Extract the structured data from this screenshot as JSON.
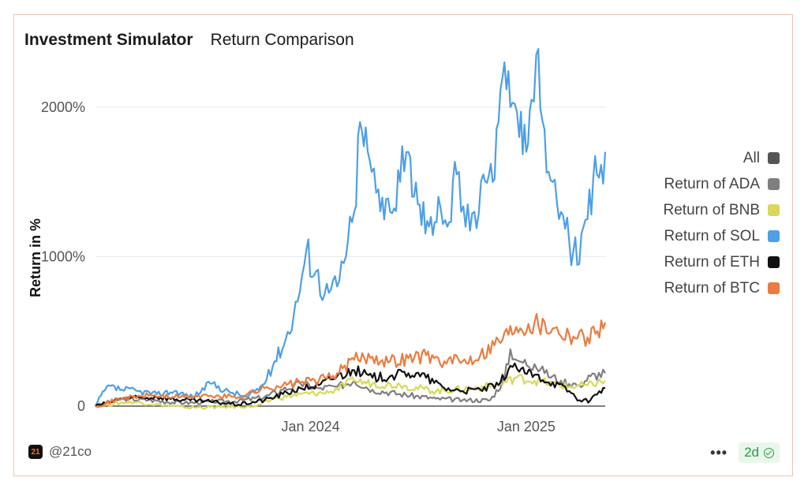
{
  "header": {
    "app_title": "Investment Simulator",
    "chart_title": "Return Comparison"
  },
  "footer": {
    "brand_icon_text": "21",
    "handle": "@21co",
    "more_label": "•••",
    "age_badge": "2d"
  },
  "legend_all": {
    "label": "All",
    "color": "#555555"
  },
  "chart_data": {
    "type": "line",
    "title": "Return Comparison",
    "xlabel": "",
    "ylabel": "Return in %",
    "x_range": [
      "2023-01-01",
      "2025-05-15"
    ],
    "ylim": [
      0,
      2300
    ],
    "x_ticks": [
      {
        "date": "2024-01-01",
        "label": "Jan 2024"
      },
      {
        "date": "2025-01-01",
        "label": "Jan 2025"
      }
    ],
    "y_ticks": [
      {
        "value": 0,
        "label": "0"
      },
      {
        "value": 1000,
        "label": "1000%"
      },
      {
        "value": 2000,
        "label": "2000%"
      }
    ],
    "grid": true,
    "legend_position": "right",
    "series": [
      {
        "name": "Return of ADA",
        "color": "#7f7f7f",
        "points": [
          [
            "2023-01-01",
            0
          ],
          [
            "2023-02-15",
            50
          ],
          [
            "2023-04-01",
            40
          ],
          [
            "2023-06-01",
            20
          ],
          [
            "2023-07-15",
            30
          ],
          [
            "2023-09-01",
            35
          ],
          [
            "2023-10-15",
            60
          ],
          [
            "2023-11-15",
            110
          ],
          [
            "2023-12-15",
            150
          ],
          [
            "2024-01-15",
            120
          ],
          [
            "2024-02-15",
            130
          ],
          [
            "2024-03-15",
            170
          ],
          [
            "2024-04-15",
            110
          ],
          [
            "2024-06-01",
            80
          ],
          [
            "2024-08-01",
            50
          ],
          [
            "2024-09-15",
            40
          ],
          [
            "2024-11-01",
            40
          ],
          [
            "2024-11-25",
            180
          ],
          [
            "2024-12-05",
            380
          ],
          [
            "2024-12-20",
            300
          ],
          [
            "2025-01-15",
            280
          ],
          [
            "2025-02-01",
            220
          ],
          [
            "2025-03-01",
            170
          ],
          [
            "2025-04-01",
            140
          ],
          [
            "2025-04-20",
            200
          ],
          [
            "2025-05-15",
            220
          ]
        ]
      },
      {
        "name": "Return of BNB",
        "color": "#d8d85a",
        "points": [
          [
            "2023-01-01",
            0
          ],
          [
            "2023-03-01",
            30
          ],
          [
            "2023-06-01",
            -10
          ],
          [
            "2023-08-01",
            -5
          ],
          [
            "2023-10-01",
            0
          ],
          [
            "2023-11-01",
            50
          ],
          [
            "2023-12-15",
            80
          ],
          [
            "2024-02-01",
            90
          ],
          [
            "2024-03-15",
            170
          ],
          [
            "2024-04-15",
            150
          ],
          [
            "2024-06-01",
            140
          ],
          [
            "2024-08-01",
            100
          ],
          [
            "2024-10-01",
            120
          ],
          [
            "2024-11-15",
            140
          ],
          [
            "2024-12-15",
            190
          ],
          [
            "2025-01-15",
            170
          ],
          [
            "2025-02-15",
            150
          ],
          [
            "2025-03-15",
            130
          ],
          [
            "2025-04-15",
            140
          ],
          [
            "2025-05-15",
            170
          ]
        ]
      },
      {
        "name": "Return of SOL",
        "color": "#4d9fe6",
        "points": [
          [
            "2023-01-01",
            0
          ],
          [
            "2023-01-20",
            130
          ],
          [
            "2023-02-15",
            110
          ],
          [
            "2023-03-15",
            100
          ],
          [
            "2023-04-15",
            80
          ],
          [
            "2023-05-15",
            100
          ],
          [
            "2023-06-15",
            60
          ],
          [
            "2023-07-15",
            150
          ],
          [
            "2023-08-15",
            100
          ],
          [
            "2023-09-15",
            60
          ],
          [
            "2023-10-15",
            150
          ],
          [
            "2023-11-01",
            300
          ],
          [
            "2023-11-20",
            450
          ],
          [
            "2023-12-10",
            700
          ],
          [
            "2023-12-25",
            1050
          ],
          [
            "2024-01-10",
            900
          ],
          [
            "2024-01-25",
            750
          ],
          [
            "2024-02-15",
            800
          ],
          [
            "2024-03-01",
            1000
          ],
          [
            "2024-03-15",
            1300
          ],
          [
            "2024-03-25",
            1900
          ],
          [
            "2024-04-10",
            1650
          ],
          [
            "2024-04-25",
            1450
          ],
          [
            "2024-05-15",
            1300
          ],
          [
            "2024-06-01",
            1500
          ],
          [
            "2024-06-15",
            1700
          ],
          [
            "2024-07-01",
            1350
          ],
          [
            "2024-07-20",
            1200
          ],
          [
            "2024-08-05",
            1400
          ],
          [
            "2024-08-20",
            1200
          ],
          [
            "2024-09-05",
            1550
          ],
          [
            "2024-09-20",
            1200
          ],
          [
            "2024-10-05",
            1300
          ],
          [
            "2024-10-20",
            1550
          ],
          [
            "2024-11-05",
            1500
          ],
          [
            "2024-11-15",
            1900
          ],
          [
            "2024-11-25",
            2300
          ],
          [
            "2024-12-05",
            2000
          ],
          [
            "2024-12-20",
            1800
          ],
          [
            "2025-01-01",
            1700
          ],
          [
            "2025-01-10",
            2050
          ],
          [
            "2025-01-18",
            2350
          ],
          [
            "2025-02-01",
            1850
          ],
          [
            "2025-02-15",
            1500
          ],
          [
            "2025-03-01",
            1300
          ],
          [
            "2025-03-15",
            1100
          ],
          [
            "2025-04-01",
            950
          ],
          [
            "2025-04-15",
            1250
          ],
          [
            "2025-05-01",
            1550
          ],
          [
            "2025-05-15",
            1700
          ]
        ]
      },
      {
        "name": "Return of ETH",
        "color": "#111111",
        "points": [
          [
            "2023-01-01",
            0
          ],
          [
            "2023-02-15",
            50
          ],
          [
            "2023-04-15",
            60
          ],
          [
            "2023-06-01",
            40
          ],
          [
            "2023-07-15",
            30
          ],
          [
            "2023-09-01",
            10
          ],
          [
            "2023-10-15",
            40
          ],
          [
            "2023-11-15",
            80
          ],
          [
            "2023-12-15",
            120
          ],
          [
            "2024-01-15",
            140
          ],
          [
            "2024-02-15",
            200
          ],
          [
            "2024-03-15",
            240
          ],
          [
            "2024-04-15",
            190
          ],
          [
            "2024-05-15",
            200
          ],
          [
            "2024-06-15",
            220
          ],
          [
            "2024-07-15",
            190
          ],
          [
            "2024-08-15",
            120
          ],
          [
            "2024-09-15",
            100
          ],
          [
            "2024-10-15",
            110
          ],
          [
            "2024-11-15",
            140
          ],
          [
            "2024-12-05",
            270
          ],
          [
            "2024-12-20",
            230
          ],
          [
            "2025-01-15",
            210
          ],
          [
            "2025-02-15",
            160
          ],
          [
            "2025-03-15",
            100
          ],
          [
            "2025-04-05",
            30
          ],
          [
            "2025-04-20",
            40
          ],
          [
            "2025-05-05",
            100
          ],
          [
            "2025-05-15",
            120
          ]
        ]
      },
      {
        "name": "Return of BTC",
        "color": "#ec7b3f",
        "points": [
          [
            "2023-01-01",
            0
          ],
          [
            "2023-02-15",
            50
          ],
          [
            "2023-04-01",
            70
          ],
          [
            "2023-06-01",
            60
          ],
          [
            "2023-07-15",
            70
          ],
          [
            "2023-09-01",
            60
          ],
          [
            "2023-10-15",
            120
          ],
          [
            "2023-11-15",
            140
          ],
          [
            "2023-12-15",
            160
          ],
          [
            "2024-01-15",
            170
          ],
          [
            "2024-02-15",
            220
          ],
          [
            "2024-03-15",
            310
          ],
          [
            "2024-04-15",
            330
          ],
          [
            "2024-05-15",
            300
          ],
          [
            "2024-06-15",
            320
          ],
          [
            "2024-07-15",
            340
          ],
          [
            "2024-08-15",
            300
          ],
          [
            "2024-09-15",
            300
          ],
          [
            "2024-10-15",
            340
          ],
          [
            "2024-11-15",
            440
          ],
          [
            "2024-12-15",
            530
          ],
          [
            "2025-01-15",
            560
          ],
          [
            "2025-02-15",
            520
          ],
          [
            "2025-03-15",
            480
          ],
          [
            "2025-04-15",
            460
          ],
          [
            "2025-05-15",
            560
          ]
        ]
      }
    ]
  }
}
